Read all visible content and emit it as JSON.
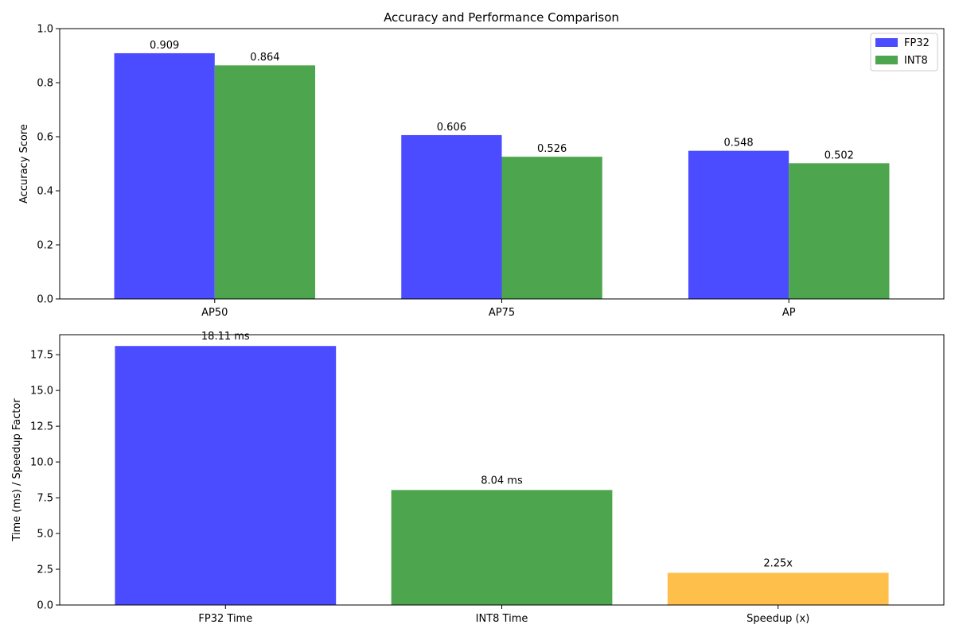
{
  "chart_data": [
    {
      "type": "bar",
      "title": "Accuracy and Performance Comparison",
      "xlabel": "",
      "ylabel": "Accuracy Score",
      "categories": [
        "AP50",
        "AP75",
        "AP"
      ],
      "series": [
        {
          "name": "FP32",
          "values": [
            0.909,
            0.606,
            0.548
          ],
          "labels": [
            "0.909",
            "0.606",
            "0.548"
          ],
          "color": "#4b4bff"
        },
        {
          "name": "INT8",
          "values": [
            0.864,
            0.526,
            0.502
          ],
          "labels": [
            "0.864",
            "0.526",
            "0.502"
          ],
          "color": "#4da64d"
        }
      ],
      "ylim": [
        0,
        1.0
      ],
      "yticks": [
        0.0,
        0.2,
        0.4,
        0.6,
        0.8,
        1.0
      ],
      "ytick_labels": [
        "0.0",
        "0.2",
        "0.4",
        "0.6",
        "0.8",
        "1.0"
      ],
      "legend": {
        "placement": "top-right"
      },
      "grid": false
    },
    {
      "type": "bar",
      "title": "",
      "xlabel": "",
      "ylabel": "Time (ms) / Speedup Factor",
      "categories": [
        "FP32 Time",
        "INT8 Time",
        "Speedup (x)"
      ],
      "values": [
        18.11,
        8.04,
        2.25
      ],
      "labels": [
        "18.11 ms",
        "8.04 ms",
        "2.25x"
      ],
      "colors": [
        "#4b4bff",
        "#4da64d",
        "#ffbf4b"
      ],
      "ylim": [
        0,
        18.9
      ],
      "yticks": [
        0.0,
        2.5,
        5.0,
        7.5,
        10.0,
        12.5,
        15.0,
        17.5
      ],
      "ytick_labels": [
        "0.0",
        "2.5",
        "5.0",
        "7.5",
        "10.0",
        "12.5",
        "15.0",
        "17.5"
      ],
      "grid": false
    }
  ]
}
